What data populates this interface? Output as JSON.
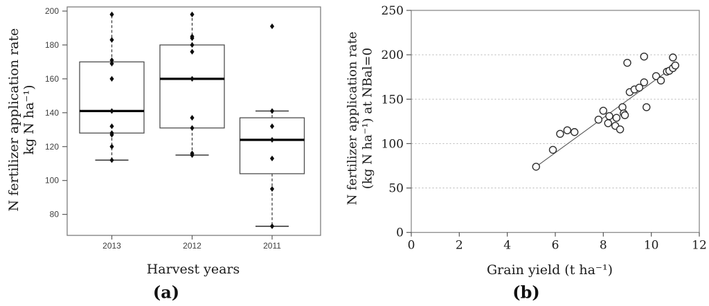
{
  "colors": {
    "ink": "#1a1a1a",
    "box_stroke": "#4d4d4d",
    "plot_border": "#7d7d7d",
    "grid_dotted": "#b5b5b5",
    "point_fill": "#ffffff",
    "point_stroke": "#2e2e2e",
    "median": "#000000",
    "diamond": "#0d0d0d",
    "trend_line": "#555555"
  },
  "chart_data": [
    {
      "id": "panel-a",
      "type": "boxplot",
      "panel_label": "(a)",
      "xlabel": "Harvest years",
      "ylabel_lines": [
        "N fertilizer application rate",
        "kg N ha⁻¹)"
      ],
      "categories": [
        "2013",
        "2012",
        "2011"
      ],
      "ylim": [
        68,
        202
      ],
      "yticks": [
        80,
        100,
        120,
        140,
        160,
        180,
        200
      ],
      "grid": false,
      "boxes": [
        {
          "category": "2013",
          "q1": 128,
          "median": 141,
          "q3": 170,
          "whisker_low": 112,
          "whisker_high": 198,
          "cap_low": true,
          "cap_high": false,
          "points": [
            198,
            183,
            171,
            169,
            160,
            141,
            132,
            128,
            127,
            120,
            112
          ],
          "outliers": []
        },
        {
          "category": "2012",
          "q1": 131,
          "median": 160,
          "q3": 180,
          "whisker_low": 115,
          "whisker_high": 198,
          "cap_low": true,
          "cap_high": false,
          "points": [
            198,
            185,
            184,
            180,
            176,
            160,
            137,
            131,
            116,
            115
          ],
          "outliers": []
        },
        {
          "category": "2011",
          "q1": 104,
          "median": 124,
          "q3": 137,
          "whisker_low": 73,
          "whisker_high": 141,
          "cap_low": true,
          "cap_high": true,
          "points": [
            141,
            132,
            124,
            113,
            95,
            73
          ],
          "outliers": [
            191
          ]
        }
      ]
    },
    {
      "id": "panel-b",
      "type": "scatter",
      "panel_label": "(b)",
      "xlabel": "Grain yield (t ha⁻¹)",
      "ylabel_lines": [
        "N fertilizer application rate",
        "(kg N ha⁻¹) at NBal=0"
      ],
      "xlim": [
        0,
        12
      ],
      "ylim": [
        0,
        250
      ],
      "xticks": [
        0,
        2,
        4,
        6,
        8,
        10,
        12
      ],
      "yticks": [
        0,
        50,
        100,
        150,
        200,
        250
      ],
      "grid": "horizontal-dotted",
      "points": [
        [
          5.2,
          74
        ],
        [
          5.9,
          93
        ],
        [
          6.2,
          111
        ],
        [
          6.5,
          115
        ],
        [
          6.8,
          113
        ],
        [
          7.8,
          127
        ],
        [
          8.0,
          137
        ],
        [
          8.2,
          123
        ],
        [
          8.25,
          131
        ],
        [
          8.5,
          120
        ],
        [
          8.55,
          129
        ],
        [
          8.7,
          116
        ],
        [
          8.8,
          141
        ],
        [
          8.85,
          134
        ],
        [
          8.9,
          132
        ],
        [
          9.0,
          191
        ],
        [
          9.1,
          158
        ],
        [
          9.3,
          161
        ],
        [
          9.5,
          163
        ],
        [
          9.7,
          169
        ],
        [
          9.7,
          198
        ],
        [
          9.8,
          141
        ],
        [
          10.2,
          176
        ],
        [
          10.4,
          171
        ],
        [
          10.65,
          181
        ],
        [
          10.75,
          182
        ],
        [
          10.9,
          185
        ],
        [
          10.9,
          197
        ],
        [
          11.0,
          188
        ]
      ],
      "trend_line": {
        "x1": 5.1,
        "y1": 72,
        "x2": 11.05,
        "y2": 189
      }
    }
  ]
}
